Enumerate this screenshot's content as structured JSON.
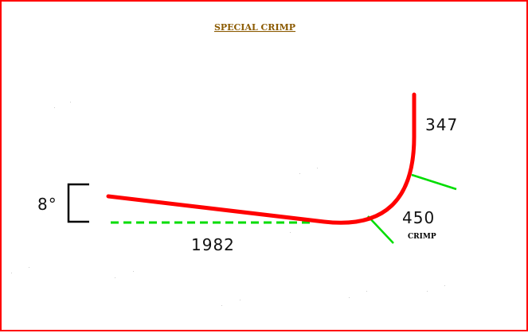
{
  "diagram": {
    "title": "SPECIAL CRIMP",
    "angle_label": "8°",
    "length_label": "1982",
    "vertical_label": "347",
    "radius_label": "450",
    "crimp_label": "CRIMP",
    "colors": {
      "border": "#ff0000",
      "profile": "#ff0000",
      "reference": "#00dd00",
      "bracket": "#000000",
      "title": "#8b5a00"
    }
  }
}
